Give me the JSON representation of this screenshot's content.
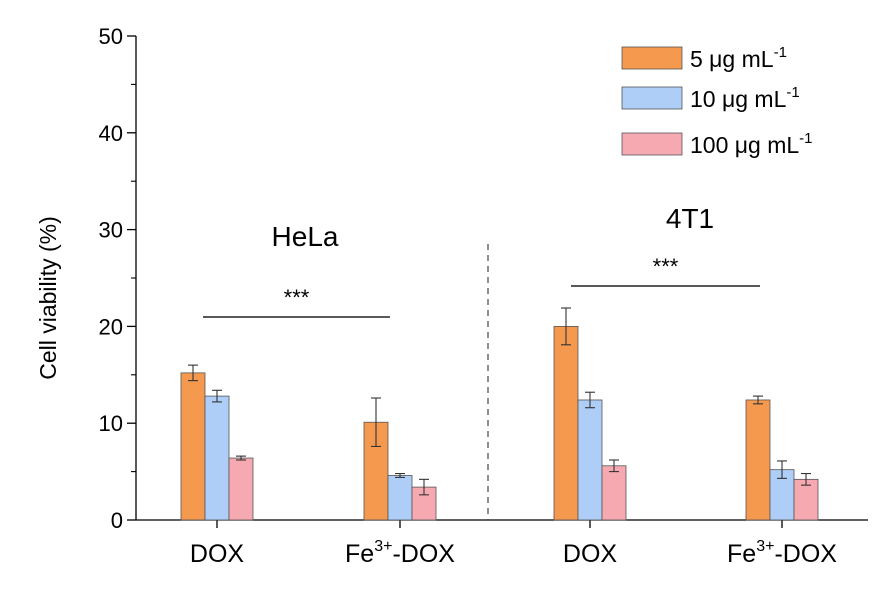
{
  "chart_data": {
    "type": "bar",
    "ylabel": "Cell viability (%)",
    "xlabel": "",
    "ylim": [
      0,
      50
    ],
    "yticks": [
      "0",
      "10",
      "20",
      "30",
      "40",
      "50"
    ],
    "categories": [
      {
        "base": "DOX",
        "sup": "",
        "rest": "",
        "group": "HeLa"
      },
      {
        "base": "Fe",
        "sup": "3+",
        "rest": "-DOX",
        "group": "HeLa"
      },
      {
        "base": "DOX",
        "sup": "",
        "rest": "",
        "group": "4T1"
      },
      {
        "base": "Fe",
        "sup": "3+",
        "rest": "-DOX",
        "group": "4T1"
      }
    ],
    "series": [
      {
        "name": "5 μg mL",
        "name_sup": "-1",
        "color": "#f5994f",
        "values": [
          15.2,
          10.1,
          20.0,
          12.4
        ],
        "errors": [
          0.8,
          2.5,
          1.9,
          0.4
        ]
      },
      {
        "name": "10 μg mL",
        "name_sup": "-1",
        "color": "#aecdf7",
        "values": [
          12.8,
          4.6,
          12.4,
          5.2
        ],
        "errors": [
          0.6,
          0.2,
          0.8,
          0.9
        ]
      },
      {
        "name": "100 μg mL",
        "name_sup": "-1",
        "color": "#f7a9b1",
        "values": [
          6.4,
          3.4,
          5.6,
          4.2
        ],
        "errors": [
          0.2,
          0.8,
          0.6,
          0.6
        ]
      }
    ],
    "groups": [
      {
        "label": "HeLa",
        "significance": "***"
      },
      {
        "label": "4T1",
        "significance": "***"
      }
    ],
    "legend_position": "top-right",
    "grid": false
  }
}
